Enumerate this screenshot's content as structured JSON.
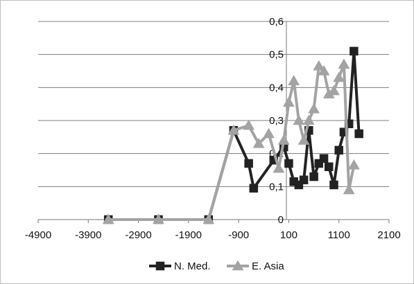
{
  "chart_data": {
    "type": "line",
    "title": "",
    "xlabel": "",
    "ylabel": "",
    "xlim": [
      -4900,
      2100
    ],
    "ylim": [
      0,
      0.6
    ],
    "x_ticks": [
      "-4900",
      "-3900",
      "-2900",
      "-1900",
      "-900",
      "100",
      "1100",
      "2100"
    ],
    "y_ticks": [
      "0",
      "0,1",
      "0,2",
      "0,3",
      "0,4",
      "0,5",
      "0,6"
    ],
    "grid": "horizontal",
    "legend_position": "bottom",
    "series": [
      {
        "name": "N. Med.",
        "color": "#222222",
        "marker": "square",
        "points": [
          [
            -3500,
            0
          ],
          [
            -2500,
            0
          ],
          [
            -1500,
            0
          ],
          [
            -1000,
            0.27
          ],
          [
            -700,
            0.17
          ],
          [
            -600,
            0.095
          ],
          [
            -200,
            0.18
          ],
          [
            0,
            0.22
          ],
          [
            100,
            0.17
          ],
          [
            200,
            0.115
          ],
          [
            300,
            0.105
          ],
          [
            400,
            0.12
          ],
          [
            500,
            0.27
          ],
          [
            600,
            0.13
          ],
          [
            700,
            0.17
          ],
          [
            800,
            0.185
          ],
          [
            900,
            0.16
          ],
          [
            1000,
            0.105
          ],
          [
            1100,
            0.21
          ],
          [
            1200,
            0.265
          ],
          [
            1300,
            0.29
          ],
          [
            1400,
            0.51
          ],
          [
            1500,
            0.26
          ]
        ]
      },
      {
        "name": "E. Asia",
        "color": "#a3a3a3",
        "marker": "triangle",
        "points": [
          [
            -3500,
            0
          ],
          [
            -2500,
            0
          ],
          [
            -1500,
            0
          ],
          [
            -1000,
            0.27
          ],
          [
            -700,
            0.285
          ],
          [
            -500,
            0.23
          ],
          [
            -300,
            0.26
          ],
          [
            -100,
            0.155
          ],
          [
            0,
            0.24
          ],
          [
            100,
            0.355
          ],
          [
            200,
            0.42
          ],
          [
            300,
            0.3
          ],
          [
            400,
            0.24
          ],
          [
            500,
            0.3
          ],
          [
            600,
            0.335
          ],
          [
            700,
            0.465
          ],
          [
            800,
            0.45
          ],
          [
            900,
            0.38
          ],
          [
            1000,
            0.39
          ],
          [
            1100,
            0.43
          ],
          [
            1200,
            0.47
          ],
          [
            1300,
            0.09
          ],
          [
            1400,
            0.165
          ]
        ]
      }
    ]
  }
}
